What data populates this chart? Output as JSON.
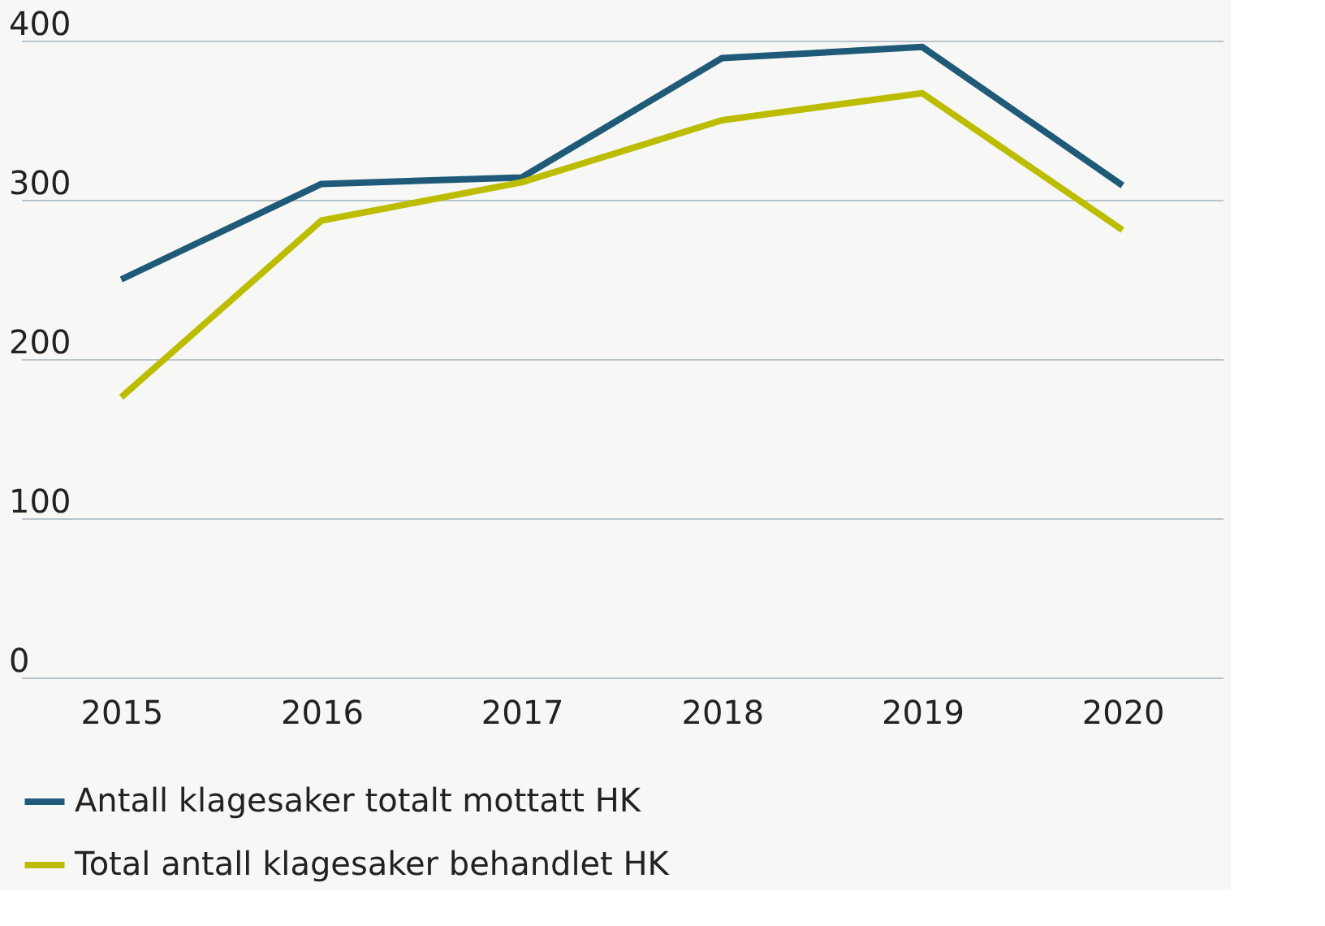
{
  "chart_data": {
    "type": "line",
    "categories": [
      "2015",
      "2016",
      "2017",
      "2018",
      "2019",
      "2020"
    ],
    "series": [
      {
        "name": "Antall klagesaker totalt mottatt HK",
        "color": "#1f5a78",
        "values": [
          250,
          310,
          314,
          389,
          396,
          309
        ]
      },
      {
        "name": "Total antall klagesaker behandlet HK",
        "color": "#bcbd00",
        "values": [
          176,
          287,
          311,
          350,
          367,
          281
        ]
      }
    ],
    "ylim": [
      0,
      400
    ],
    "yticks": [
      0,
      100,
      200,
      300,
      400
    ],
    "grid": "y",
    "legend": "bottom",
    "marker": "none",
    "line_style": "solid"
  }
}
